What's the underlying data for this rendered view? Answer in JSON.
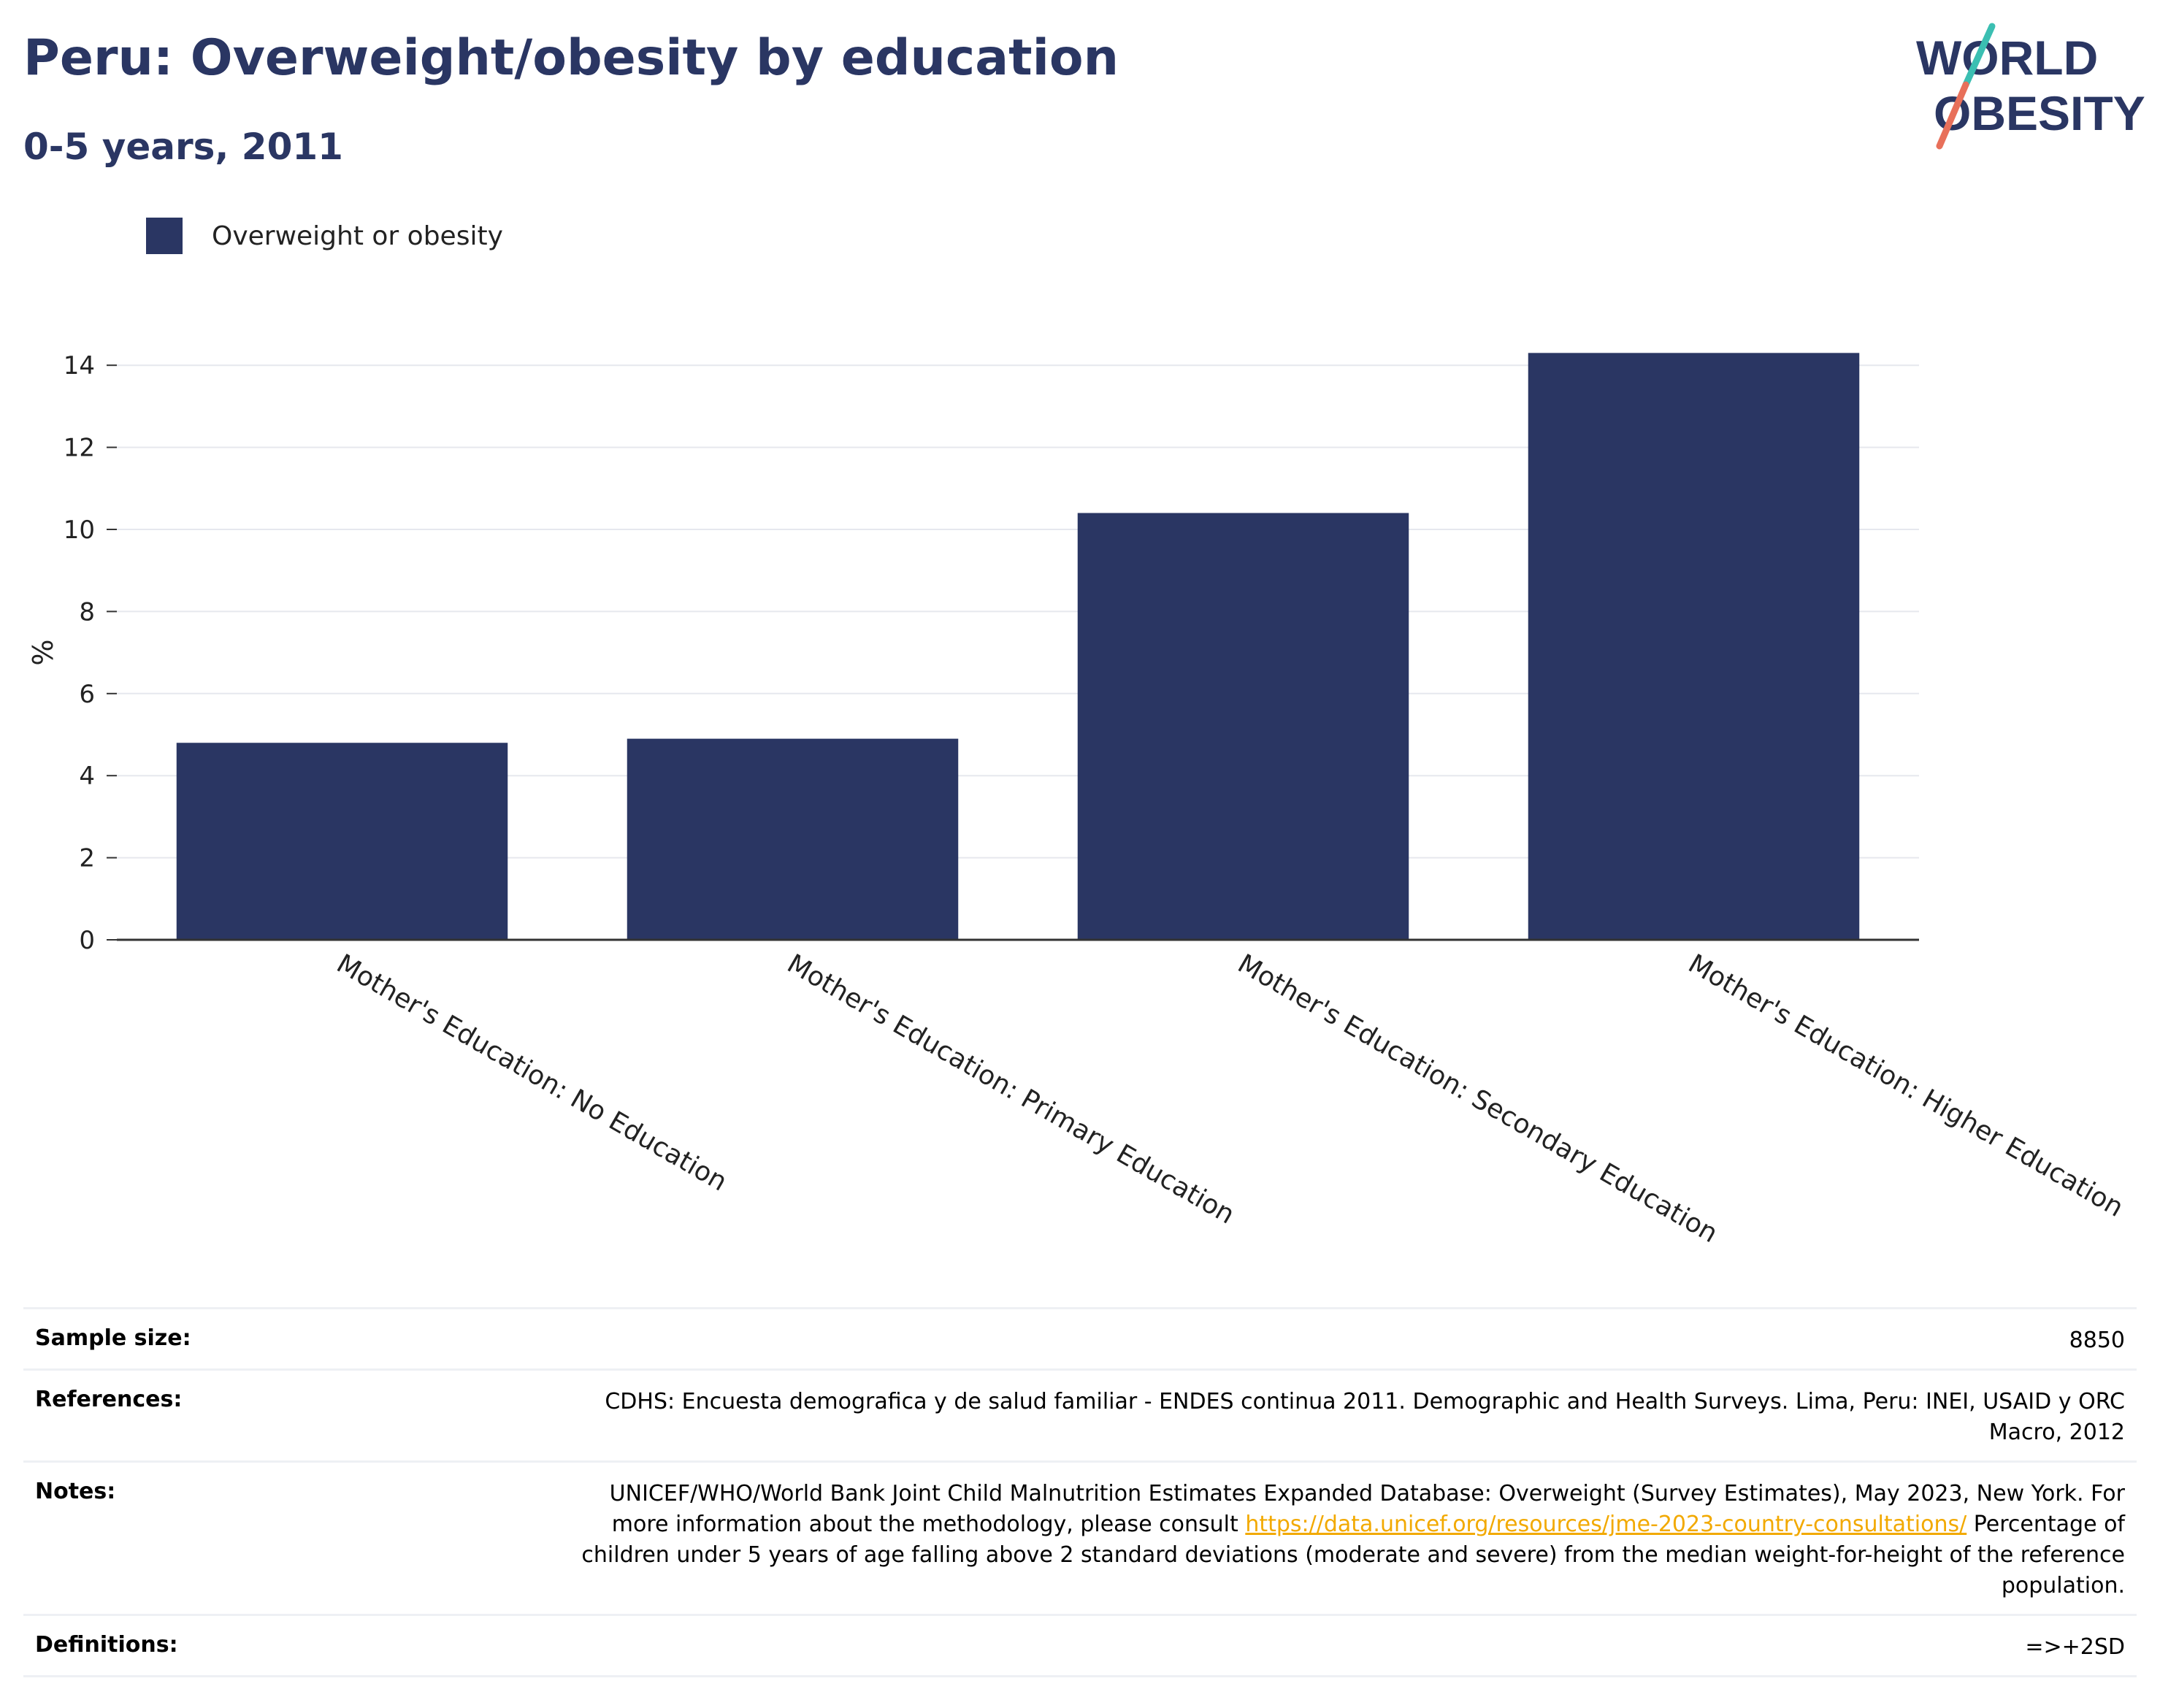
{
  "header": {
    "title": "Peru: Overweight/obesity by education",
    "subtitle": "0-5 years, 2011"
  },
  "logo": {
    "line1": "WORLD",
    "line2": "OBESITY",
    "text_color": "#2a3663",
    "slash_teal": "#3bbfb2",
    "slash_coral": "#e8705a"
  },
  "legend": {
    "label": "Overweight or obesity",
    "color": "#2a3663"
  },
  "chart_data": {
    "type": "bar",
    "categories": [
      "Mother's Education: No Education",
      "Mother's Education: Primary Education",
      "Mother's Education: Secondary Education",
      "Mother's Education: Higher Education"
    ],
    "series": [
      {
        "name": "Overweight or obesity",
        "values": [
          4.8,
          4.9,
          10.4,
          14.3
        ],
        "color": "#2a3663"
      }
    ],
    "ylabel": "%",
    "xlabel": "",
    "ylim": [
      0,
      15
    ],
    "yticks": [
      0,
      2,
      4,
      6,
      8,
      10,
      12,
      14
    ],
    "grid": true,
    "legend_position": "top-left"
  },
  "info": {
    "sample_size": {
      "key": "Sample size:",
      "value": "8850"
    },
    "references": {
      "key": "References:",
      "value": "CDHS: Encuesta demografica y de salud familiar - ENDES continua 2011. Demographic and Health Surveys. Lima, Peru: INEI, USAID y ORC Macro, 2012"
    },
    "notes": {
      "key": "Notes:",
      "text_before": "UNICEF/WHO/World Bank Joint Child Malnutrition Estimates Expanded Database: Overweight (Survey Estimates), May 2023, New York. For more information about the methodology, please consult ",
      "link": "https://data.unicef.org/resources/jme-2023-country-consultations/",
      "text_after": " Percentage of children under 5 years of age falling above 2 standard deviations (moderate and severe) from the median weight-for-height of the reference population."
    },
    "definitions": {
      "key": "Definitions:",
      "value": "=>+2SD"
    }
  }
}
